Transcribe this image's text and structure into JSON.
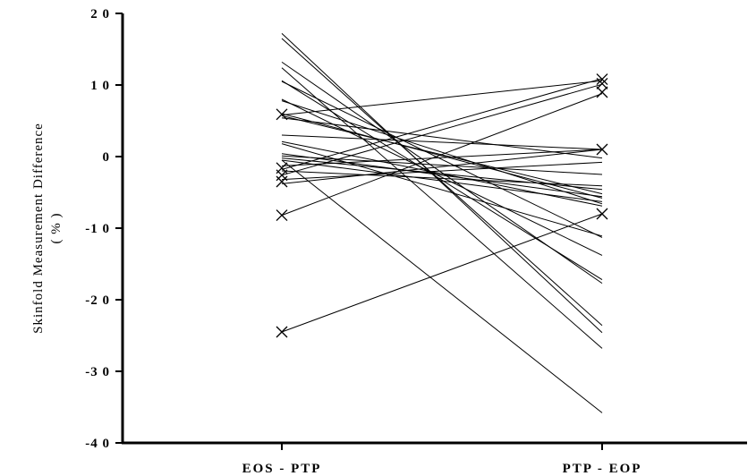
{
  "chart_data": {
    "type": "line",
    "title": "",
    "xlabel": "",
    "ylabel": "Skinfold Measurement Difference",
    "ylabel_unit": "( % )",
    "categories": [
      "EOS - PTP",
      "PTP - EOP"
    ],
    "ylim": [
      -40,
      20
    ],
    "yticks": [
      20,
      10,
      0,
      -10,
      -20,
      -30,
      -40
    ],
    "ytick_labels": [
      "2 0",
      "1 0",
      "0",
      "-1 0",
      "-2 0",
      "-3 0",
      "-4 0"
    ],
    "grid": false,
    "line_color": "#000000",
    "series": [
      {
        "values": [
          17.2,
          -24.6
        ]
      },
      {
        "values": [
          16.5,
          -23.6
        ]
      },
      {
        "values": [
          13.2,
          -17.7
        ]
      },
      {
        "values": [
          12.4,
          -26.8
        ]
      },
      {
        "values": [
          10.6,
          -17.2
        ]
      },
      {
        "values": [
          10.5,
          -11.3
        ]
      },
      {
        "values": [
          8.0,
          -13.8
        ]
      },
      {
        "values": [
          7.8,
          -6.6
        ]
      },
      {
        "values": [
          6.0,
          -5.8
        ]
      },
      {
        "values": [
          5.7,
          -5.2
        ]
      },
      {
        "values": [
          5.8,
          10.6
        ]
      },
      {
        "values": [
          5.4,
          -0.2
        ]
      },
      {
        "values": [
          3.0,
          1.0
        ]
      },
      {
        "values": [
          2.1,
          -6.9
        ]
      },
      {
        "values": [
          1.8,
          -11.1
        ]
      },
      {
        "values": [
          0.4,
          -5.6
        ]
      },
      {
        "values": [
          0.1,
          -2.5
        ]
      },
      {
        "values": [
          -0.2,
          -4.6
        ]
      },
      {
        "values": [
          -0.5,
          -6.3
        ]
      },
      {
        "values": [
          -1.3,
          1.0
        ]
      },
      {
        "values": [
          -1.8,
          10.9
        ]
      },
      {
        "values": [
          -2.0,
          -4.1
        ]
      },
      {
        "values": [
          -2.6,
          10.1
        ]
      },
      {
        "values": [
          -3.2,
          -0.8
        ]
      },
      {
        "values": [
          -3.8,
          1.0
        ]
      },
      {
        "values": [
          -0.5,
          -35.8
        ]
      },
      {
        "values": [
          -8.2,
          8.8
        ]
      },
      {
        "values": [
          -24.5,
          -8.0
        ]
      }
    ],
    "markers": [
      {
        "category": "EOS - PTP",
        "value": 5.9
      },
      {
        "category": "EOS - PTP",
        "value": -1.6
      },
      {
        "category": "EOS - PTP",
        "value": -2.6
      },
      {
        "category": "EOS - PTP",
        "value": -3.5
      },
      {
        "category": "EOS - PTP",
        "value": -8.2
      },
      {
        "category": "EOS - PTP",
        "value": -24.5
      },
      {
        "category": "PTP - EOP",
        "value": 10.8
      },
      {
        "category": "PTP - EOP",
        "value": 10.2
      },
      {
        "category": "PTP - EOP",
        "value": 9.0
      },
      {
        "category": "PTP - EOP",
        "value": 1.0
      },
      {
        "category": "PTP - EOP",
        "value": -8.0
      }
    ]
  }
}
